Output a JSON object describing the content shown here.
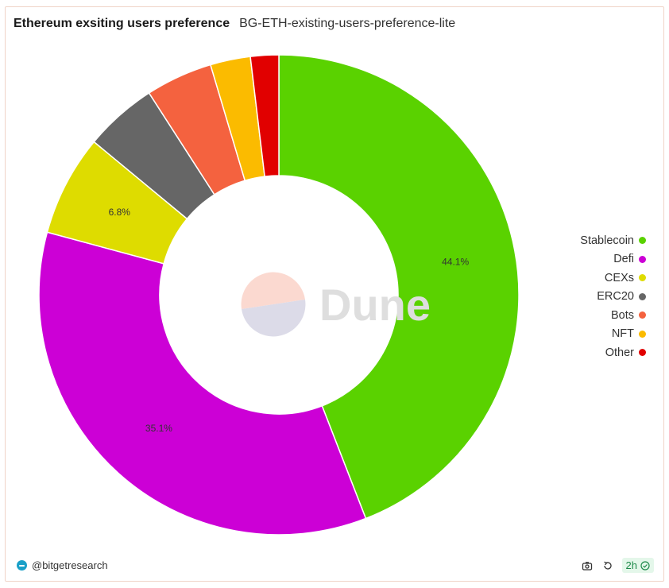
{
  "header": {
    "title": "Ethereum exsiting users preference",
    "subtitle": "BG-ETH-existing-users-preference-lite"
  },
  "watermark": {
    "text": "Dune"
  },
  "footer": {
    "author": "@bitgetresearch",
    "refresh_age": "2h",
    "icons": [
      "camera-icon",
      "refresh-icon",
      "check-circle-icon"
    ]
  },
  "chart_data": {
    "type": "pie",
    "donut": true,
    "title": "Ethereum exsiting users preference",
    "legend_position": "right",
    "slices": [
      {
        "name": "Stablecoin",
        "value": 44.1,
        "color": "#5ad200",
        "label": "44.1%"
      },
      {
        "name": "Defi",
        "value": 35.1,
        "color": "#cc00d6",
        "label": "35.1%"
      },
      {
        "name": "CEXs",
        "value": 6.8,
        "color": "#dedc00",
        "label": "6.8%"
      },
      {
        "name": "ERC20",
        "value": 4.9,
        "color": "#666666",
        "label": ""
      },
      {
        "name": "Bots",
        "value": 4.5,
        "color": "#f4623f",
        "label": ""
      },
      {
        "name": "NFT",
        "value": 2.7,
        "color": "#fbbb00",
        "label": ""
      },
      {
        "name": "Other",
        "value": 1.9,
        "color": "#e10000",
        "label": ""
      }
    ]
  }
}
